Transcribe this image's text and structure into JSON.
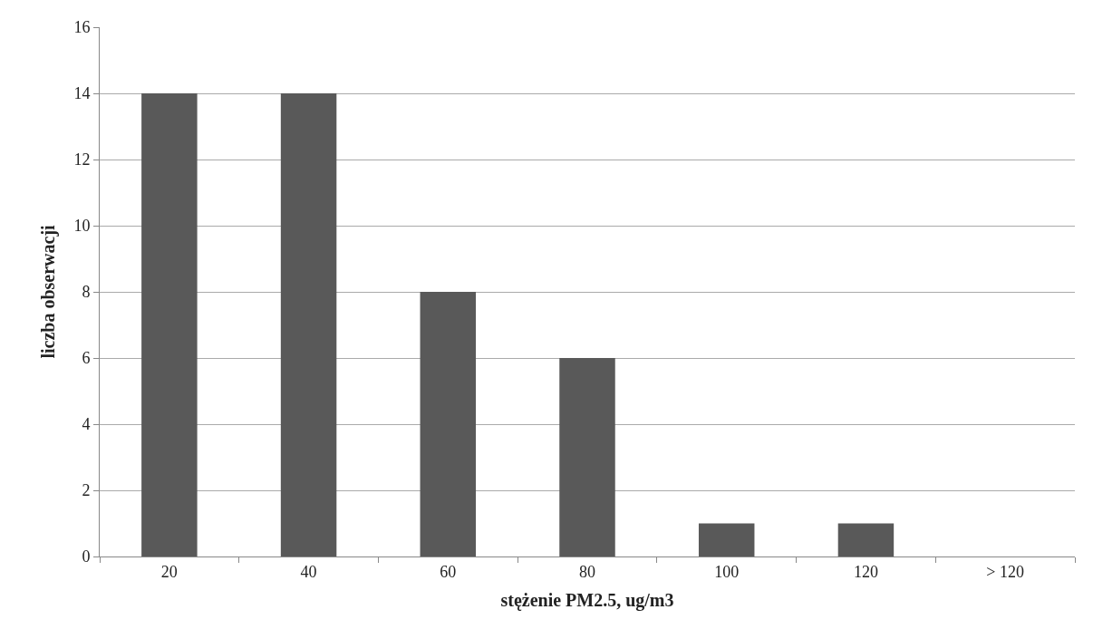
{
  "chart_data": {
    "type": "bar",
    "xlabel": "stężenie PM2.5, ug/m3",
    "ylabel": "liczba obserwacji",
    "categories": [
      "20",
      "40",
      "60",
      "80",
      "100",
      "120",
      "> 120"
    ],
    "values": [
      14,
      14,
      8,
      6,
      1,
      1,
      0
    ],
    "color": "#595959",
    "ylim": [
      0,
      16
    ],
    "yticks": [
      0,
      2,
      4,
      6,
      8,
      10,
      12,
      14,
      16
    ],
    "grid": "y"
  }
}
